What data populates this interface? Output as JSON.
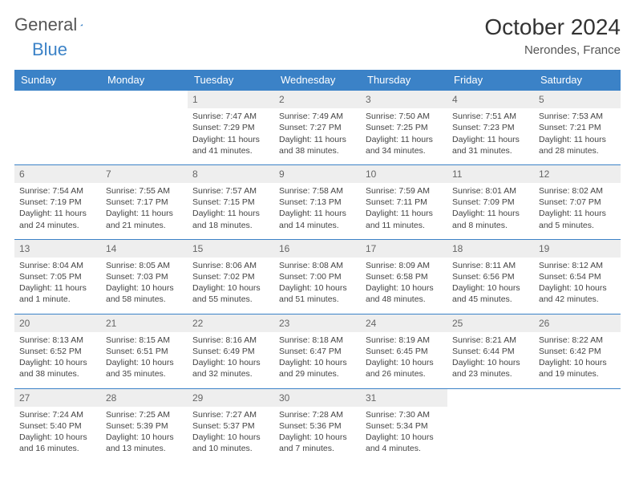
{
  "brand": {
    "part1": "General",
    "part2": "Blue"
  },
  "title": "October 2024",
  "location": "Nerondes, France",
  "colors": {
    "header_bg": "#3b82c7",
    "daynum_bg": "#eeeeee",
    "rule": "#3b82c7"
  },
  "day_headers": [
    "Sunday",
    "Monday",
    "Tuesday",
    "Wednesday",
    "Thursday",
    "Friday",
    "Saturday"
  ],
  "weeks": [
    [
      {
        "n": "",
        "sr": "",
        "ss": "",
        "dl": ""
      },
      {
        "n": "",
        "sr": "",
        "ss": "",
        "dl": ""
      },
      {
        "n": "1",
        "sr": "Sunrise: 7:47 AM",
        "ss": "Sunset: 7:29 PM",
        "dl": "Daylight: 11 hours and 41 minutes."
      },
      {
        "n": "2",
        "sr": "Sunrise: 7:49 AM",
        "ss": "Sunset: 7:27 PM",
        "dl": "Daylight: 11 hours and 38 minutes."
      },
      {
        "n": "3",
        "sr": "Sunrise: 7:50 AM",
        "ss": "Sunset: 7:25 PM",
        "dl": "Daylight: 11 hours and 34 minutes."
      },
      {
        "n": "4",
        "sr": "Sunrise: 7:51 AM",
        "ss": "Sunset: 7:23 PM",
        "dl": "Daylight: 11 hours and 31 minutes."
      },
      {
        "n": "5",
        "sr": "Sunrise: 7:53 AM",
        "ss": "Sunset: 7:21 PM",
        "dl": "Daylight: 11 hours and 28 minutes."
      }
    ],
    [
      {
        "n": "6",
        "sr": "Sunrise: 7:54 AM",
        "ss": "Sunset: 7:19 PM",
        "dl": "Daylight: 11 hours and 24 minutes."
      },
      {
        "n": "7",
        "sr": "Sunrise: 7:55 AM",
        "ss": "Sunset: 7:17 PM",
        "dl": "Daylight: 11 hours and 21 minutes."
      },
      {
        "n": "8",
        "sr": "Sunrise: 7:57 AM",
        "ss": "Sunset: 7:15 PM",
        "dl": "Daylight: 11 hours and 18 minutes."
      },
      {
        "n": "9",
        "sr": "Sunrise: 7:58 AM",
        "ss": "Sunset: 7:13 PM",
        "dl": "Daylight: 11 hours and 14 minutes."
      },
      {
        "n": "10",
        "sr": "Sunrise: 7:59 AM",
        "ss": "Sunset: 7:11 PM",
        "dl": "Daylight: 11 hours and 11 minutes."
      },
      {
        "n": "11",
        "sr": "Sunrise: 8:01 AM",
        "ss": "Sunset: 7:09 PM",
        "dl": "Daylight: 11 hours and 8 minutes."
      },
      {
        "n": "12",
        "sr": "Sunrise: 8:02 AM",
        "ss": "Sunset: 7:07 PM",
        "dl": "Daylight: 11 hours and 5 minutes."
      }
    ],
    [
      {
        "n": "13",
        "sr": "Sunrise: 8:04 AM",
        "ss": "Sunset: 7:05 PM",
        "dl": "Daylight: 11 hours and 1 minute."
      },
      {
        "n": "14",
        "sr": "Sunrise: 8:05 AM",
        "ss": "Sunset: 7:03 PM",
        "dl": "Daylight: 10 hours and 58 minutes."
      },
      {
        "n": "15",
        "sr": "Sunrise: 8:06 AM",
        "ss": "Sunset: 7:02 PM",
        "dl": "Daylight: 10 hours and 55 minutes."
      },
      {
        "n": "16",
        "sr": "Sunrise: 8:08 AM",
        "ss": "Sunset: 7:00 PM",
        "dl": "Daylight: 10 hours and 51 minutes."
      },
      {
        "n": "17",
        "sr": "Sunrise: 8:09 AM",
        "ss": "Sunset: 6:58 PM",
        "dl": "Daylight: 10 hours and 48 minutes."
      },
      {
        "n": "18",
        "sr": "Sunrise: 8:11 AM",
        "ss": "Sunset: 6:56 PM",
        "dl": "Daylight: 10 hours and 45 minutes."
      },
      {
        "n": "19",
        "sr": "Sunrise: 8:12 AM",
        "ss": "Sunset: 6:54 PM",
        "dl": "Daylight: 10 hours and 42 minutes."
      }
    ],
    [
      {
        "n": "20",
        "sr": "Sunrise: 8:13 AM",
        "ss": "Sunset: 6:52 PM",
        "dl": "Daylight: 10 hours and 38 minutes."
      },
      {
        "n": "21",
        "sr": "Sunrise: 8:15 AM",
        "ss": "Sunset: 6:51 PM",
        "dl": "Daylight: 10 hours and 35 minutes."
      },
      {
        "n": "22",
        "sr": "Sunrise: 8:16 AM",
        "ss": "Sunset: 6:49 PM",
        "dl": "Daylight: 10 hours and 32 minutes."
      },
      {
        "n": "23",
        "sr": "Sunrise: 8:18 AM",
        "ss": "Sunset: 6:47 PM",
        "dl": "Daylight: 10 hours and 29 minutes."
      },
      {
        "n": "24",
        "sr": "Sunrise: 8:19 AM",
        "ss": "Sunset: 6:45 PM",
        "dl": "Daylight: 10 hours and 26 minutes."
      },
      {
        "n": "25",
        "sr": "Sunrise: 8:21 AM",
        "ss": "Sunset: 6:44 PM",
        "dl": "Daylight: 10 hours and 23 minutes."
      },
      {
        "n": "26",
        "sr": "Sunrise: 8:22 AM",
        "ss": "Sunset: 6:42 PM",
        "dl": "Daylight: 10 hours and 19 minutes."
      }
    ],
    [
      {
        "n": "27",
        "sr": "Sunrise: 7:24 AM",
        "ss": "Sunset: 5:40 PM",
        "dl": "Daylight: 10 hours and 16 minutes."
      },
      {
        "n": "28",
        "sr": "Sunrise: 7:25 AM",
        "ss": "Sunset: 5:39 PM",
        "dl": "Daylight: 10 hours and 13 minutes."
      },
      {
        "n": "29",
        "sr": "Sunrise: 7:27 AM",
        "ss": "Sunset: 5:37 PM",
        "dl": "Daylight: 10 hours and 10 minutes."
      },
      {
        "n": "30",
        "sr": "Sunrise: 7:28 AM",
        "ss": "Sunset: 5:36 PM",
        "dl": "Daylight: 10 hours and 7 minutes."
      },
      {
        "n": "31",
        "sr": "Sunrise: 7:30 AM",
        "ss": "Sunset: 5:34 PM",
        "dl": "Daylight: 10 hours and 4 minutes."
      },
      {
        "n": "",
        "sr": "",
        "ss": "",
        "dl": ""
      },
      {
        "n": "",
        "sr": "",
        "ss": "",
        "dl": ""
      }
    ]
  ]
}
